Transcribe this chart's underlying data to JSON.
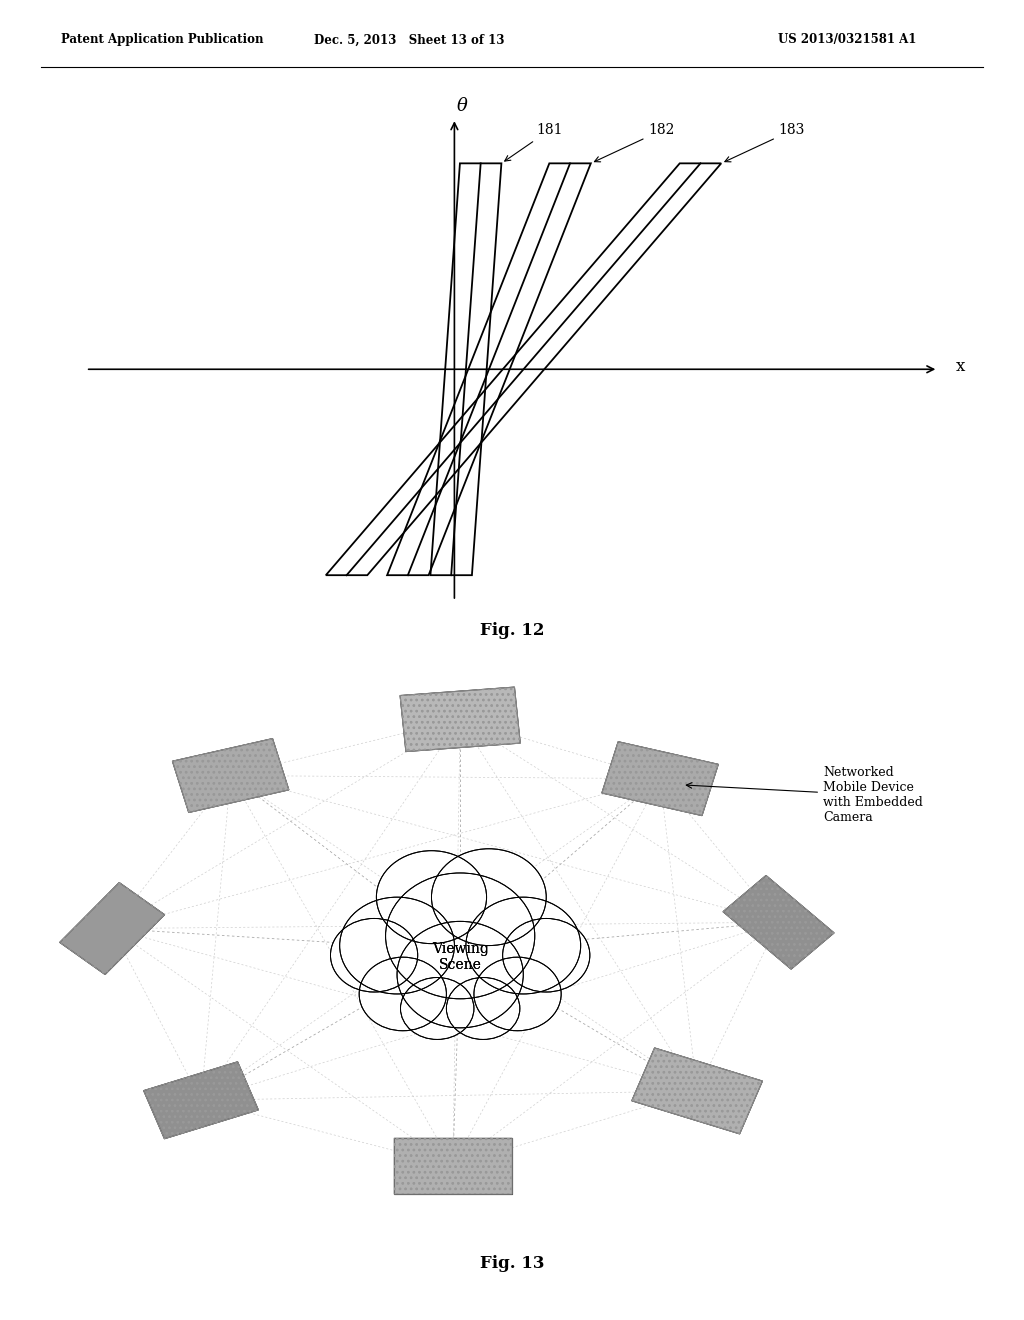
{
  "header_left": "Patent Application Publication",
  "header_mid": "Dec. 5, 2013   Sheet 13 of 13",
  "header_right": "US 2013/0321581 A1",
  "fig12_label": "Fig. 12",
  "fig13_label": "Fig. 13",
  "theta_label": "θ",
  "x_label": "x",
  "plane_labels": [
    "181",
    "182",
    "183"
  ],
  "viewing_scene_text": "Viewing\nScene",
  "networked_label": "Networked\nMobile Device\nwith Embedded\nCamera",
  "background_color": "#ffffff",
  "line_color": "#000000",
  "gray_light": "#aaaaaa",
  "gray_mid": "#888888",
  "gray_dark": "#666666"
}
